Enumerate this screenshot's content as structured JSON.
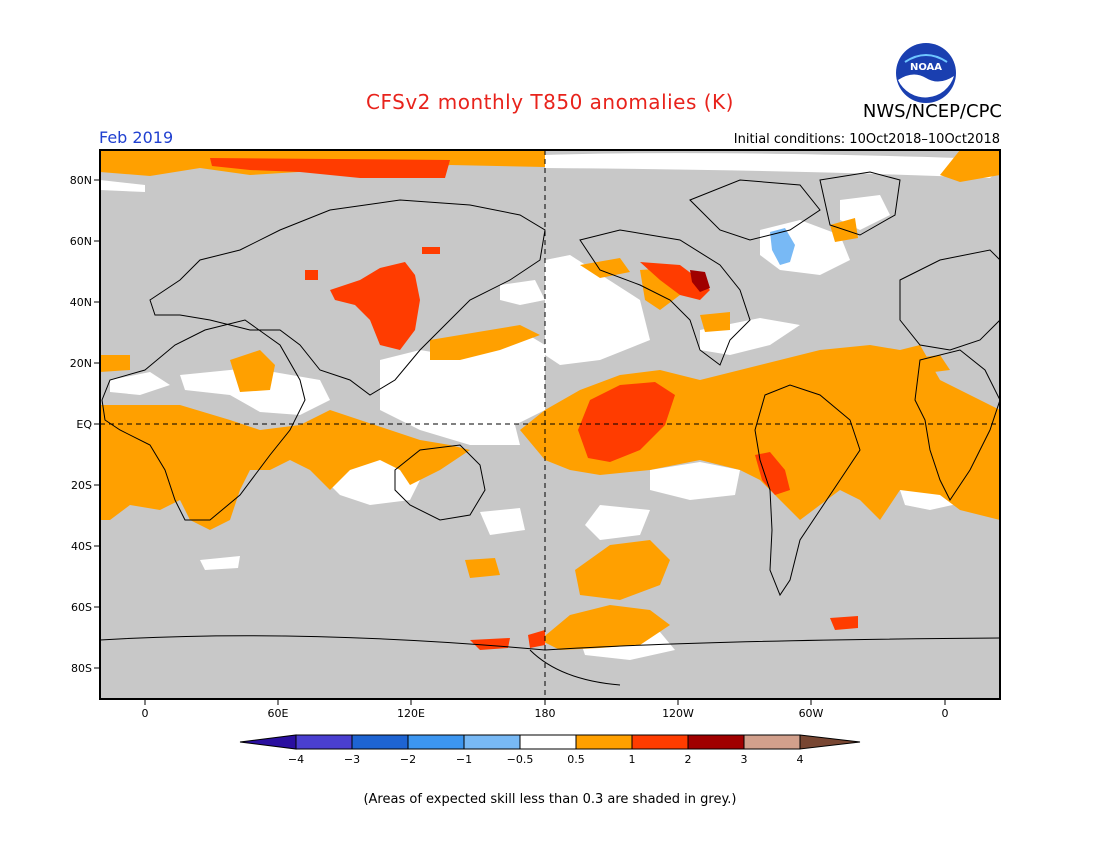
{
  "title": "CFSv2 monthly T850 anomalies (K)",
  "agency": "NWS/NCEP/CPC",
  "period": "Feb 2019",
  "initial_conditions": "Initial conditions: 10Oct2018–10Oct2018",
  "skill_note": "(Areas of expected skill less than 0.3 are shaded in grey.)",
  "logo": {
    "text": "NOAA",
    "icon": "noaa-logo-icon"
  },
  "map": {
    "lat_labels": [
      "80N",
      "60N",
      "40N",
      "20N",
      "EQ",
      "20S",
      "40S",
      "60S",
      "80S"
    ],
    "lon_labels": [
      "0",
      "60E",
      "120E",
      "180",
      "120W",
      "60W",
      "0"
    ],
    "background_color": "#c8c8c8",
    "reference_lines": [
      "EQ",
      "180"
    ]
  },
  "legend": {
    "labels": [
      "−4",
      "−3",
      "−2",
      "−1",
      "−0.5",
      "0.5",
      "1",
      "2",
      "3",
      "4"
    ],
    "colors": [
      "#2a0fa0",
      "#4a3fd0",
      "#1e64d2",
      "#3c96f0",
      "#78b9f5",
      "#ffffff",
      "#ffa000",
      "#ff3c00",
      "#a00000",
      "#d2a08c",
      "#784632"
    ]
  }
}
